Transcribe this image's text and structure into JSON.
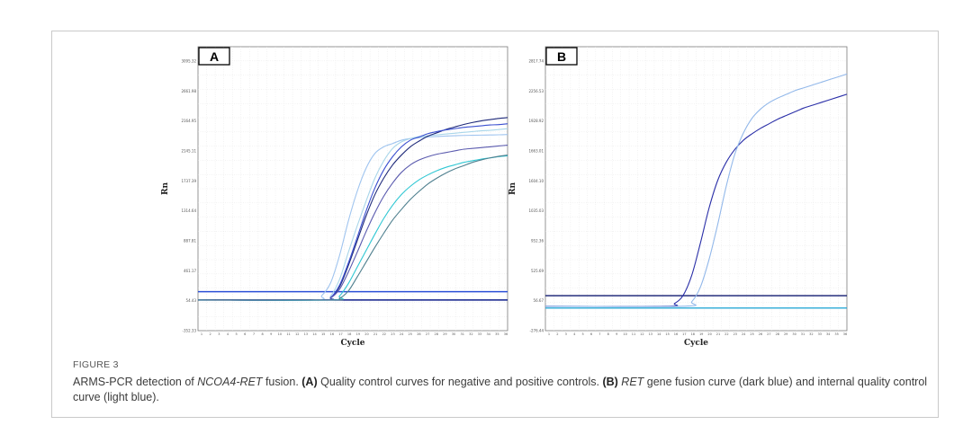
{
  "chart_data": [
    {
      "type": "line",
      "panel": "A",
      "ylabel": "Rn",
      "xlabel": "Cycle",
      "ylim": [
        -352.33,
        3095.32
      ],
      "xlim": [
        1,
        36
      ],
      "y_ticks": [
        "3095.32",
        "2661.98",
        "2164.95",
        "2145.11",
        "1737.39",
        "1314.64",
        "887.81",
        "461.17",
        "54.43",
        "-352.33"
      ],
      "x_ticks": [
        "1",
        "2",
        "3",
        "4",
        "5",
        "6",
        "7",
        "8",
        "9",
        "10",
        "11",
        "12",
        "13",
        "14",
        "15",
        "16",
        "17",
        "18",
        "19",
        "20",
        "21",
        "22",
        "23",
        "24",
        "25",
        "26",
        "27",
        "28",
        "29",
        "30",
        "31",
        "32",
        "33",
        "34",
        "35",
        "36"
      ],
      "grid": true,
      "thresholds": [
        {
          "y": 121,
          "color": "#2b4fd6"
        },
        {
          "y": 20,
          "color": "#0f1f8a"
        }
      ],
      "series": [
        {
          "color": "#9fc4ef",
          "x": [
            1,
            14,
            15,
            16,
            17,
            18,
            19,
            20,
            21,
            22,
            23,
            24,
            25,
            26,
            27,
            28,
            29,
            30,
            31,
            32,
            33,
            34,
            35,
            36
          ],
          "y": [
            20,
            20,
            75,
            230,
            560,
            980,
            1340,
            1620,
            1800,
            1880,
            1920,
            1960,
            1980,
            1990,
            2000,
            2005,
            2010,
            2015,
            2018,
            2020,
            2022,
            2024,
            2026,
            2030
          ]
        },
        {
          "color": "#a9d6ea",
          "x": [
            1,
            15,
            16,
            17,
            18,
            19,
            20,
            21,
            22,
            23,
            24,
            25,
            26,
            27,
            28,
            29,
            30,
            31,
            32,
            33,
            34,
            35,
            36
          ],
          "y": [
            20,
            20,
            70,
            270,
            600,
            920,
            1220,
            1500,
            1710,
            1860,
            1940,
            1980,
            2005,
            2015,
            2025,
            2035,
            2045,
            2055,
            2065,
            2075,
            2080,
            2090,
            2100
          ]
        },
        {
          "color": "#1f2a7a",
          "x": [
            1,
            15,
            16,
            17,
            18,
            19,
            20,
            21,
            22,
            23,
            24,
            25,
            26,
            27,
            28,
            29,
            30,
            31,
            32,
            33,
            34,
            35,
            36
          ],
          "y": [
            20,
            20,
            50,
            180,
            440,
            740,
            1040,
            1300,
            1500,
            1660,
            1780,
            1880,
            1950,
            2010,
            2050,
            2090,
            2120,
            2150,
            2175,
            2195,
            2210,
            2225,
            2235
          ]
        },
        {
          "color": "#3a4fd0",
          "x": [
            1,
            15,
            16,
            17,
            18,
            19,
            20,
            21,
            22,
            23,
            24,
            25,
            26,
            27,
            28,
            29,
            30,
            31,
            32,
            33,
            34,
            35,
            36
          ],
          "y": [
            20,
            20,
            50,
            200,
            470,
            780,
            1100,
            1380,
            1600,
            1760,
            1880,
            1960,
            2000,
            2040,
            2065,
            2085,
            2100,
            2115,
            2125,
            2135,
            2145,
            2150,
            2160
          ]
        },
        {
          "color": "#5a5aae",
          "x": [
            1,
            15,
            16,
            17,
            18,
            19,
            20,
            21,
            22,
            23,
            24,
            25,
            26,
            27,
            28,
            29,
            30,
            31,
            32,
            33,
            34,
            35,
            36
          ],
          "y": [
            20,
            20,
            45,
            150,
            360,
            600,
            850,
            1080,
            1280,
            1440,
            1570,
            1660,
            1720,
            1760,
            1790,
            1810,
            1830,
            1850,
            1860,
            1870,
            1880,
            1890,
            1900
          ]
        },
        {
          "color": "#2fc7d3",
          "x": [
            1,
            16,
            17,
            18,
            19,
            20,
            21,
            22,
            23,
            24,
            25,
            26,
            27,
            28,
            29,
            30,
            31,
            32,
            33,
            34,
            35,
            36
          ],
          "y": [
            20,
            20,
            70,
            220,
            420,
            620,
            820,
            1010,
            1170,
            1300,
            1400,
            1480,
            1540,
            1590,
            1630,
            1660,
            1690,
            1710,
            1730,
            1745,
            1760,
            1770
          ]
        },
        {
          "color": "#4e7f8e",
          "x": [
            1,
            16,
            17,
            18,
            19,
            20,
            21,
            22,
            23,
            24,
            25,
            26,
            27,
            28,
            29,
            30,
            31,
            32,
            33,
            34,
            35,
            36
          ],
          "y": [
            20,
            20,
            40,
            130,
            300,
            480,
            660,
            830,
            990,
            1120,
            1240,
            1340,
            1430,
            1500,
            1560,
            1610,
            1650,
            1690,
            1720,
            1745,
            1765,
            1780
          ]
        }
      ]
    },
    {
      "type": "line",
      "panel": "B",
      "ylabel": "Rn",
      "xlabel": "Cycle",
      "ylim": [
        -276.44,
        2817.74
      ],
      "xlim": [
        1,
        36
      ],
      "y_ticks": [
        "2817.74",
        "2256.53",
        "1928.92",
        "1663.01",
        "1604.10",
        "1035.03",
        "952.36",
        "525.69",
        "56.67",
        "-276.44"
      ],
      "x_ticks": [
        "1",
        "2",
        "3",
        "4",
        "5",
        "6",
        "7",
        "8",
        "9",
        "10",
        "11",
        "12",
        "13",
        "14",
        "15",
        "16",
        "17",
        "18",
        "19",
        "20",
        "21",
        "22",
        "23",
        "24",
        "25",
        "26",
        "27",
        "28",
        "29",
        "30",
        "31",
        "32",
        "33",
        "34",
        "35",
        "36"
      ],
      "grid": true,
      "thresholds": [
        {
          "y": 105,
          "color": "#101a70"
        },
        {
          "y": -30,
          "color": "#29a9d6"
        }
      ],
      "series": [
        {
          "name": "RET gene fusion curve",
          "color": "#2a2fa8",
          "x": [
            1,
            15,
            16,
            17,
            18,
            19,
            20,
            21,
            22,
            23,
            24,
            25,
            26,
            27,
            28,
            29,
            30,
            31,
            32,
            33,
            34,
            35,
            36
          ],
          "y": [
            -10,
            -10,
            20,
            110,
            330,
            680,
            1060,
            1360,
            1560,
            1700,
            1800,
            1870,
            1930,
            1980,
            2030,
            2070,
            2110,
            2150,
            2180,
            2210,
            2240,
            2270,
            2300
          ]
        },
        {
          "name": "internal quality control curve",
          "color": "#92b8ea",
          "x": [
            1,
            17,
            18,
            19,
            20,
            21,
            22,
            23,
            24,
            25,
            26,
            27,
            28,
            29,
            30,
            31,
            32,
            33,
            34,
            35,
            36
          ],
          "y": [
            -10,
            -10,
            40,
            200,
            500,
            880,
            1300,
            1650,
            1880,
            2040,
            2140,
            2210,
            2260,
            2300,
            2340,
            2370,
            2400,
            2430,
            2460,
            2490,
            2520
          ]
        }
      ]
    }
  ],
  "figure_label": "FIGURE 3",
  "caption": {
    "p1": "ARMS-PCR detection of ",
    "p1_italic": "NCOA4-RET",
    "p2": " fusion. ",
    "p3_bold": "(A)",
    "p4": " Quality control curves for negative and positive controls. ",
    "p5_bold": "(B)",
    "p6": " ",
    "p6_italic": "RET",
    "p7": " gene fusion curve (dark blue) and internal quality control curve (light blue)."
  },
  "colors": {
    "frame": "#c9c9c9",
    "grid": "#e6e6e6"
  }
}
